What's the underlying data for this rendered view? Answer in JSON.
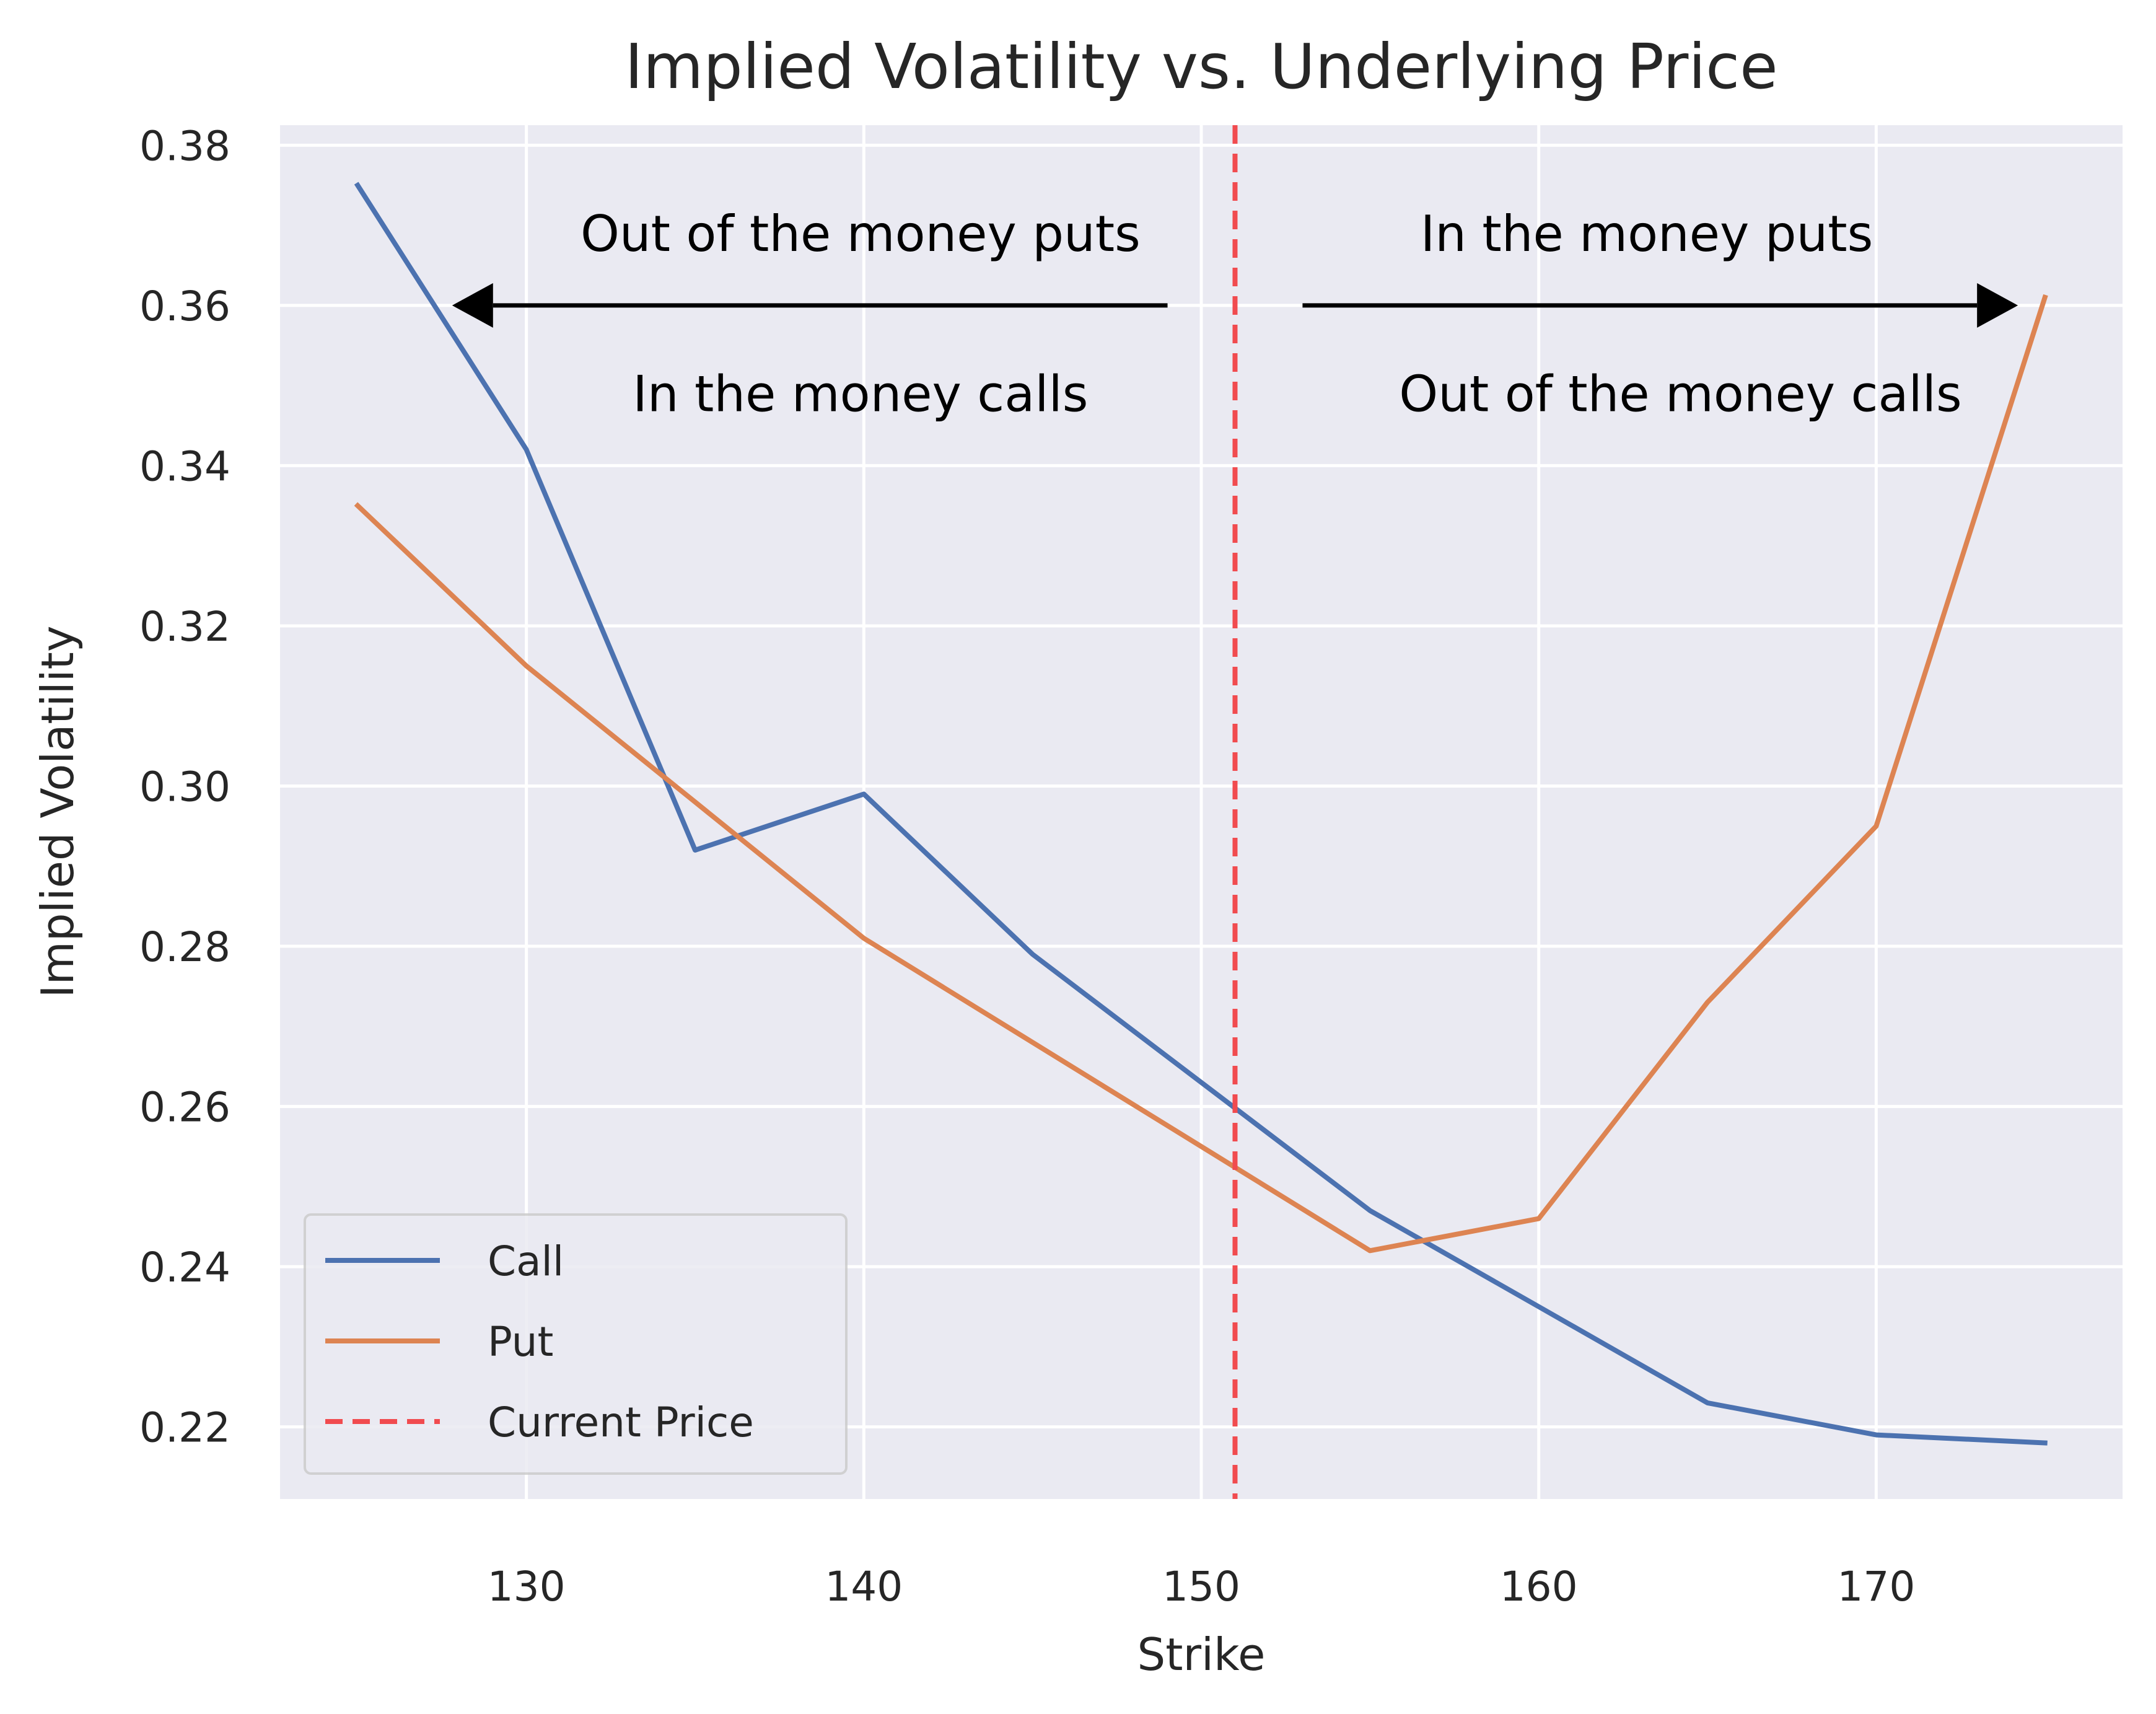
{
  "chart_data": {
    "type": "line",
    "title": "Implied Volatility vs. Underlying Price",
    "xlabel": "Strike",
    "ylabel": "Implied Volatility",
    "xlim": [
      122.7,
      177.3
    ],
    "ylim": [
      0.211,
      0.3825
    ],
    "x_ticks": [
      130,
      140,
      150,
      160,
      170
    ],
    "y_ticks": [
      0.22,
      0.24,
      0.26,
      0.28,
      0.3,
      0.32,
      0.34,
      0.36,
      0.38
    ],
    "y_tick_labels": [
      "0.22",
      "0.24",
      "0.26",
      "0.28",
      "0.30",
      "0.32",
      "0.34",
      "0.36",
      "0.38"
    ],
    "grid": true,
    "legend_position": "lower-left",
    "series": [
      {
        "name": "Call",
        "color": "#4c72b0",
        "x": [
          125,
          130,
          135,
          140,
          145,
          150,
          155,
          160,
          165,
          170,
          175
        ],
        "y": [
          0.375,
          0.342,
          0.292,
          0.299,
          0.279,
          0.263,
          0.247,
          0.235,
          0.223,
          0.219,
          0.218
        ]
      },
      {
        "name": "Put",
        "color": "#dd8452",
        "x": [
          125,
          130,
          135,
          140,
          145,
          150,
          155,
          160,
          165,
          170,
          175
        ],
        "y": [
          0.335,
          0.315,
          0.298,
          0.281,
          0.268,
          0.255,
          0.242,
          0.246,
          0.273,
          0.295,
          0.361
        ]
      }
    ],
    "reference_line": {
      "name": "Current Price",
      "x": 151,
      "color": "#f14b4f",
      "style": "dashed"
    },
    "annotations": [
      {
        "text": "Out of the money puts",
        "x": 139.9,
        "y": 0.3685
      },
      {
        "text": "In the money calls",
        "x": 139.9,
        "y": 0.3485
      },
      {
        "text": "In the money puts",
        "x": 163.2,
        "y": 0.3685
      },
      {
        "text": "Out of the money calls",
        "x": 164.2,
        "y": 0.3485
      }
    ],
    "arrows": [
      {
        "from_x": 149,
        "to_x": 127.8,
        "y": 0.36
      },
      {
        "from_x": 153,
        "to_x": 174.2,
        "y": 0.36
      }
    ]
  }
}
